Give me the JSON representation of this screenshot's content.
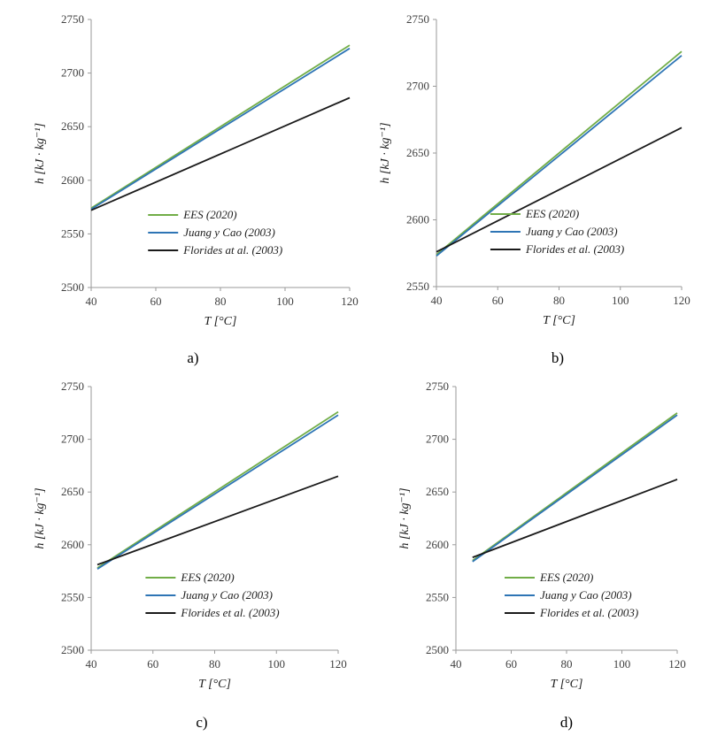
{
  "colors": {
    "EES": "#71ad47",
    "Juang": "#2e75b5",
    "Florides": "#1a1a1a",
    "axis": "#9a9a9a"
  },
  "chart_data": [
    {
      "type": "line",
      "caption": "a)",
      "xlabel": "T [°C]",
      "ylabel": "h [kJ · kg⁻¹]",
      "xlim": [
        40,
        120
      ],
      "ylim": [
        2500,
        2750
      ],
      "xticks": [
        40,
        60,
        80,
        100,
        120
      ],
      "yticks": [
        2500,
        2550,
        2600,
        2650,
        2700,
        2750
      ],
      "legend_position": "bottom-right",
      "series": [
        {
          "name": "EES (2020)",
          "color_key": "EES",
          "x": [
            40,
            120
          ],
          "y": [
            2574,
            2726
          ]
        },
        {
          "name": "Juang y Cao (2003)",
          "color_key": "Juang",
          "x": [
            40,
            120
          ],
          "y": [
            2573,
            2723
          ]
        },
        {
          "name": "Florides at al. (2003)",
          "color_key": "Florides",
          "x": [
            40,
            120
          ],
          "y": [
            2572,
            2677
          ]
        }
      ]
    },
    {
      "type": "line",
      "caption": "b)",
      "xlabel": "T [°C]",
      "ylabel": "h [kJ · kg⁻¹]",
      "xlim": [
        40,
        120
      ],
      "ylim": [
        2550,
        2750
      ],
      "xticks": [
        40,
        60,
        80,
        100,
        120
      ],
      "yticks": [
        2550,
        2600,
        2650,
        2700,
        2750
      ],
      "legend_position": "bottom-right",
      "series": [
        {
          "name": "EES (2020)",
          "color_key": "EES",
          "x": [
            40,
            120
          ],
          "y": [
            2574,
            2726
          ]
        },
        {
          "name": "Juang y Cao (2003)",
          "color_key": "Juang",
          "x": [
            40,
            120
          ],
          "y": [
            2573,
            2723
          ]
        },
        {
          "name": "Florides et al. (2003)",
          "color_key": "Florides",
          "x": [
            40,
            120
          ],
          "y": [
            2576,
            2669
          ]
        }
      ]
    },
    {
      "type": "line",
      "caption": "c)",
      "xlabel": "T [°C]",
      "ylabel": "h [kJ · kg⁻¹]",
      "xlim": [
        40,
        120
      ],
      "ylim": [
        2500,
        2750
      ],
      "xticks": [
        40,
        60,
        80,
        100,
        120
      ],
      "yticks": [
        2500,
        2550,
        2600,
        2650,
        2700,
        2750
      ],
      "legend_position": "bottom-right",
      "series": [
        {
          "name": "EES (2020)",
          "color_key": "EES",
          "x": [
            42,
            120
          ],
          "y": [
            2578,
            2726
          ]
        },
        {
          "name": "Juang y Cao (2003)",
          "color_key": "Juang",
          "x": [
            42,
            120
          ],
          "y": [
            2577,
            2723
          ]
        },
        {
          "name": "Florides et al. (2003)",
          "color_key": "Florides",
          "x": [
            42,
            120
          ],
          "y": [
            2581,
            2665
          ]
        }
      ]
    },
    {
      "type": "line",
      "caption": "d)",
      "xlabel": "T [°C]",
      "ylabel": "h [kJ · kg⁻¹]",
      "xlim": [
        40,
        120
      ],
      "ylim": [
        2500,
        2750
      ],
      "xticks": [
        40,
        60,
        80,
        100,
        120
      ],
      "yticks": [
        2500,
        2550,
        2600,
        2650,
        2700,
        2750
      ],
      "legend_position": "bottom-right",
      "series": [
        {
          "name": "EES (2020)",
          "color_key": "EES",
          "x": [
            46,
            120
          ],
          "y": [
            2585,
            2725
          ]
        },
        {
          "name": "Juang y Cao (2003)",
          "color_key": "Juang",
          "x": [
            46,
            120
          ],
          "y": [
            2584,
            2723
          ]
        },
        {
          "name": "Florides et al. (2003)",
          "color_key": "Florides",
          "x": [
            46,
            120
          ],
          "y": [
            2588,
            2662
          ]
        }
      ]
    }
  ]
}
